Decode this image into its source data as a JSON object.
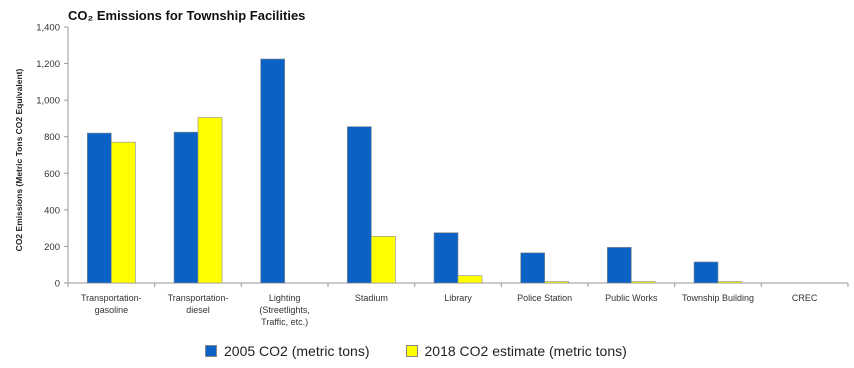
{
  "chart_data": {
    "type": "bar",
    "title": "CO₂ Emissions for Township Facilities",
    "ylabel": "CO2 Emissions (Metric Tons CO2 Equivalent)",
    "xlabel": "",
    "ylim": [
      0,
      1400
    ],
    "yticks": [
      0,
      200,
      400,
      600,
      800,
      1000,
      1200,
      1400
    ],
    "ytick_labels": [
      "0",
      "200",
      "400",
      "600",
      "800",
      "1,000",
      "1,200",
      "1,400"
    ],
    "categories": [
      [
        "Transportation-",
        "gasoline"
      ],
      [
        "Transportation-",
        "diesel"
      ],
      [
        "Lighting",
        "(Streetlights,",
        "Traffic, etc.)"
      ],
      [
        "Stadium"
      ],
      [
        "Library"
      ],
      [
        "Police Station"
      ],
      [
        "Public Works"
      ],
      [
        "Township Building"
      ],
      [
        "CREC"
      ]
    ],
    "series": [
      {
        "name": "2005 CO2 (metric tons)",
        "color": "#0b62c4",
        "values": [
          820,
          825,
          1225,
          855,
          275,
          165,
          195,
          115,
          0
        ]
      },
      {
        "name": "2018 CO2 estimate  (metric tons)",
        "color": "#ffff00",
        "values": [
          770,
          905,
          0,
          255,
          40,
          8,
          8,
          8,
          0
        ]
      }
    ],
    "grid": false,
    "legend_position": "bottom"
  }
}
